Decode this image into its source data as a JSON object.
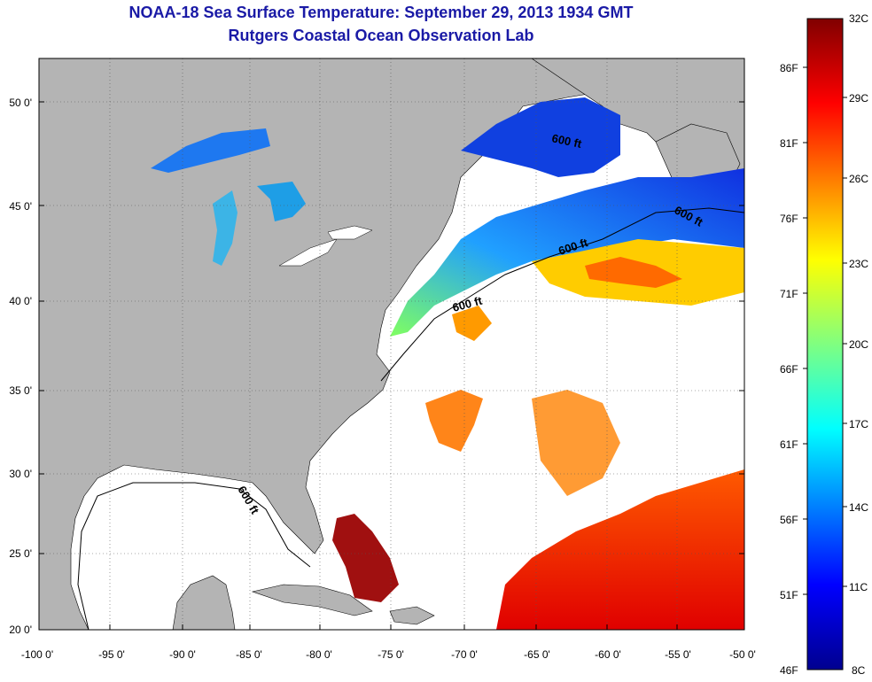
{
  "title_line1": "NOAA-18 Sea Surface Temperature:  September 29, 2013 1934 GMT",
  "title_line2": "Rutgers Coastal Ocean Observation Lab",
  "lat_labels": [
    "50 0'",
    "45 0'",
    "40 0'",
    "35 0'",
    "30 0'",
    "25 0'",
    "20 0'"
  ],
  "lon_labels": [
    "-100 0'",
    "-95 0'",
    "-90 0'",
    "-85 0'",
    "-80 0'",
    "-75 0'",
    "-70 0'",
    "-65 0'",
    "-60 0'",
    "-55 0'",
    "-50 0'"
  ],
  "colorbar_celsius": [
    "32C",
    "29C",
    "26C",
    "23C",
    "20C",
    "17C",
    "14C",
    "11C",
    "8C"
  ],
  "colorbar_fahrenheit": [
    "86F",
    "81F",
    "76F",
    "71F",
    "66F",
    "61F",
    "56F",
    "51F",
    "46F"
  ],
  "isobath_label": "600 ft",
  "colors": {
    "land": "#b4b4b4",
    "title": "#1a1aa6",
    "cloud": "#ffffff"
  }
}
